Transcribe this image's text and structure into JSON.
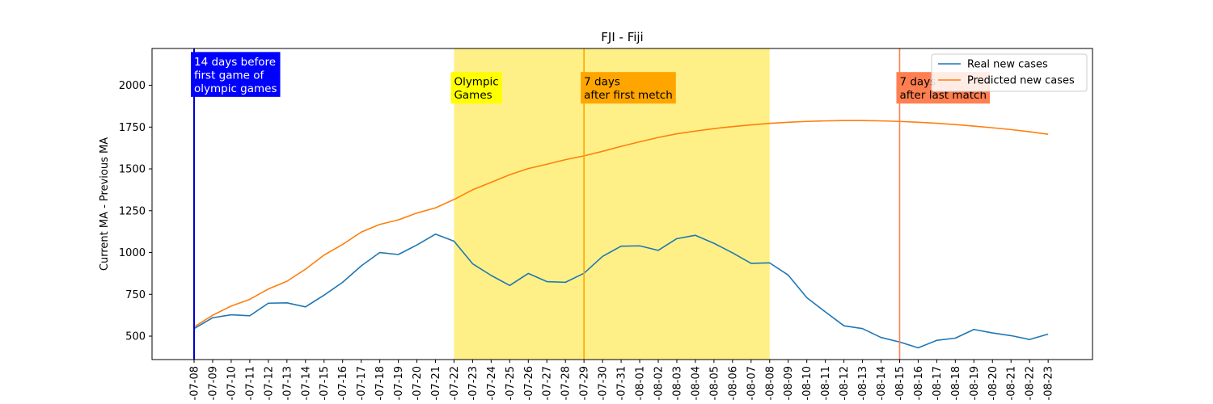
{
  "chart_data": {
    "type": "line",
    "title": "FJI - Fiji",
    "xlabel": "",
    "ylabel": "Current MA - Previous MA",
    "ylim": [
      360,
      2220
    ],
    "yticks": [
      500,
      750,
      1000,
      1250,
      1500,
      1750,
      2000
    ],
    "ytick_labels": [
      "500",
      "750",
      "1000",
      "1250",
      "1500",
      "1750",
      "2000"
    ],
    "x": [
      "2021-07-08",
      "2021-07-09",
      "2021-07-10",
      "2021-07-11",
      "2021-07-12",
      "2021-07-13",
      "2021-07-14",
      "2021-07-15",
      "2021-07-16",
      "2021-07-17",
      "2021-07-18",
      "2021-07-19",
      "2021-07-20",
      "2021-07-21",
      "2021-07-22",
      "2021-07-23",
      "2021-07-24",
      "2021-07-25",
      "2021-07-26",
      "2021-07-27",
      "2021-07-28",
      "2021-07-29",
      "2021-07-30",
      "2021-07-31",
      "2021-08-01",
      "2021-08-02",
      "2021-08-03",
      "2021-08-04",
      "2021-08-05",
      "2021-08-06",
      "2021-08-07",
      "2021-08-08",
      "2021-08-09",
      "2021-08-10",
      "2021-08-11",
      "2021-08-12",
      "2021-08-13",
      "2021-08-14",
      "2021-08-15",
      "2021-08-16",
      "2021-08-17",
      "2021-08-18",
      "2021-08-19",
      "2021-08-20",
      "2021-08-21",
      "2021-08-22",
      "2021-08-23"
    ],
    "xtick_labels": [
      "-07-08",
      "-07-09",
      "-07-10",
      "-07-11",
      "-07-12",
      "-07-13",
      "-07-14",
      "-07-15",
      "-07-16",
      "-07-17",
      "-07-18",
      "-07-19",
      "-07-20",
      "-07-21",
      "-07-22",
      "-07-23",
      "-07-24",
      "-07-25",
      "-07-26",
      "-07-27",
      "-07-28",
      "-07-29",
      "-07-30",
      "-07-31",
      "-08-01",
      "-08-02",
      "-08-03",
      "-08-04",
      "-08-05",
      "-08-06",
      "-08-07",
      "-08-08",
      "-08-09",
      "-08-10",
      "-08-11",
      "-08-12",
      "-08-13",
      "-08-14",
      "-08-15",
      "-08-16",
      "-08-17",
      "-08-18",
      "-08-19",
      "-08-20",
      "-08-21",
      "-08-22",
      "-08-23"
    ],
    "series": [
      {
        "name": "Real new cases",
        "color": "#1f77b4",
        "values": [
          545,
          610,
          628,
          622,
          697,
          699,
          675,
          745,
          822,
          920,
          1000,
          988,
          1045,
          1110,
          1068,
          933,
          863,
          803,
          875,
          826,
          822,
          876,
          977,
          1038,
          1040,
          1013,
          1083,
          1103,
          1055,
          998,
          935,
          938,
          865,
          730,
          645,
          562,
          545,
          492,
          465,
          430,
          475,
          488,
          540,
          519,
          503,
          480,
          512
        ]
      },
      {
        "name": "Predicted new cases",
        "color": "#ff7f0e",
        "values": [
          555,
          625,
          680,
          720,
          782,
          828,
          900,
          985,
          1048,
          1122,
          1168,
          1195,
          1236,
          1267,
          1317,
          1375,
          1420,
          1465,
          1502,
          1528,
          1555,
          1578,
          1605,
          1635,
          1662,
          1688,
          1710,
          1726,
          1741,
          1753,
          1763,
          1772,
          1779,
          1784,
          1787,
          1789,
          1789,
          1787,
          1784,
          1779,
          1773,
          1765,
          1756,
          1746,
          1735,
          1722,
          1707
        ]
      }
    ],
    "shaded_region": {
      "start": "2021-07-22",
      "end": "2021-08-08",
      "color": "#fef087"
    },
    "vertical_lines": [
      {
        "x": "2021-07-08",
        "color": "#0000cc"
      },
      {
        "x": "2021-07-29",
        "color": "#ffa500"
      },
      {
        "x": "2021-08-15",
        "color": "#ff7f50"
      }
    ],
    "annotations": [
      {
        "lines": [
          "14 days before",
          "first game of",
          "olympic games"
        ],
        "x": "2021-07-08",
        "y": 2060,
        "bg": "#0000ff",
        "fg": "#ffffff"
      },
      {
        "lines": [
          "Olympic",
          "Games"
        ],
        "x": "2021-07-22",
        "y": 1980,
        "bg": "#ffff00",
        "fg": "#000000"
      },
      {
        "lines": [
          "7 days",
          "after first metch"
        ],
        "x": "2021-07-29",
        "y": 1980,
        "bg": "#ffa500",
        "fg": "#000000"
      },
      {
        "lines": [
          "7 days",
          "after last match"
        ],
        "x": "2021-08-15",
        "y": 1980,
        "bg": "#ff7f50",
        "fg": "#000000"
      }
    ],
    "legend": {
      "location": "upper right",
      "entries": [
        "Real new cases",
        "Predicted new cases"
      ]
    },
    "grid": false
  }
}
